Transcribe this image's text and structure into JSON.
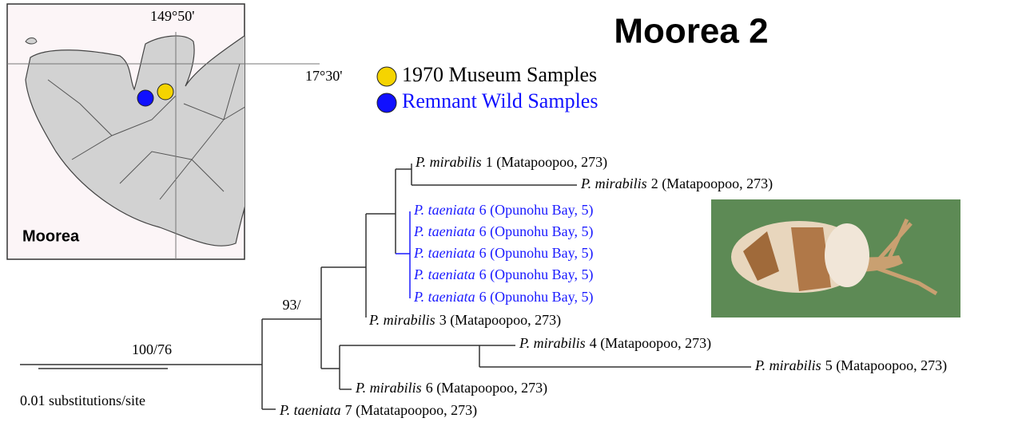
{
  "title": "Moorea 2",
  "map": {
    "longitude_label": "149°50'",
    "latitude_label": "17°30'",
    "island_label": "Moorea"
  },
  "legend": [
    {
      "label": "1970 Museum Samples",
      "color": "#f5d400"
    },
    {
      "label": "Remnant Wild Samples",
      "color": "#1010ff"
    }
  ],
  "tree": {
    "leaves": [
      {
        "species": "P. mirabilis",
        "label": "1 (Matapoopoo, 273)"
      },
      {
        "species": "P. mirabilis",
        "label": "2 (Matapoopoo, 273)"
      },
      {
        "species": "P. taeniata",
        "label": "6 (Opunohu Bay, 5)"
      },
      {
        "species": "P. taeniata",
        "label": "6 (Opunohu Bay, 5)"
      },
      {
        "species": "P. taeniata",
        "label": "6 (Opunohu Bay, 5)"
      },
      {
        "species": "P. taeniata",
        "label": "6 (Opunohu Bay, 5)"
      },
      {
        "species": "P. taeniata",
        "label": "6 (Opunohu Bay, 5)"
      },
      {
        "species": "P. mirabilis",
        "label": "3 (Matapoopoo, 273)"
      },
      {
        "species": "P. mirabilis",
        "label": "4 (Matapoopoo, 273)"
      },
      {
        "species": "P. mirabilis",
        "label": "5 (Matapoopoo, 273)"
      },
      {
        "species": "P. mirabilis",
        "label": "6 (Matapoopoo, 273)"
      },
      {
        "species": "P. taeniata",
        "label": "7 (Matatapoopoo, 273)"
      }
    ],
    "support": [
      "100/76",
      "93/"
    ],
    "scale_label": "0.01 substitutions/site"
  }
}
